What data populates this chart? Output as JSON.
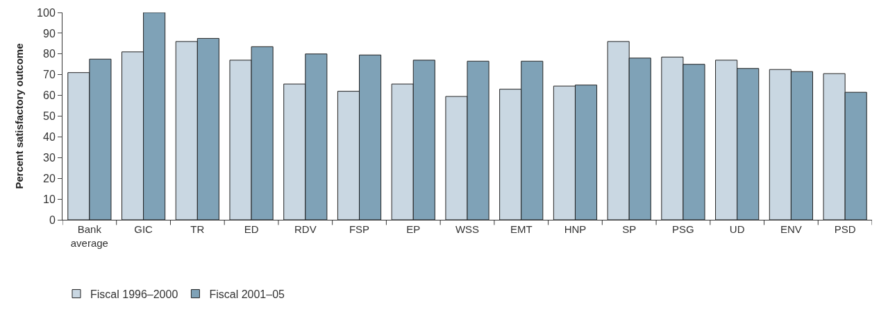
{
  "chart_data": {
    "type": "bar",
    "ylabel": "Percent satisfactory outcome",
    "categories": [
      "Bank average",
      "GIC",
      "TR",
      "ED",
      "RDV",
      "FSP",
      "EP",
      "WSS",
      "EMT",
      "HNP",
      "SP",
      "PSG",
      "UD",
      "ENV",
      "PSD"
    ],
    "series": [
      {
        "name": "Fiscal 1996–2000",
        "color": "#c9d7e2",
        "values": [
          71,
          81,
          86,
          77,
          65.5,
          62,
          65.5,
          59.5,
          63,
          64.5,
          86,
          78.5,
          77,
          72.5,
          70.5
        ]
      },
      {
        "name": "Fiscal 2001–05",
        "color": "#7fa2b7",
        "values": [
          77.5,
          100,
          87.5,
          83.5,
          80,
          79.5,
          77,
          76.5,
          76.5,
          65,
          78,
          75,
          73,
          71.5,
          61.5
        ]
      }
    ],
    "ylim": [
      0,
      100
    ],
    "yticks": [
      0,
      10,
      20,
      30,
      40,
      50,
      60,
      70,
      80,
      90,
      100
    ],
    "legend": "bottom left"
  }
}
